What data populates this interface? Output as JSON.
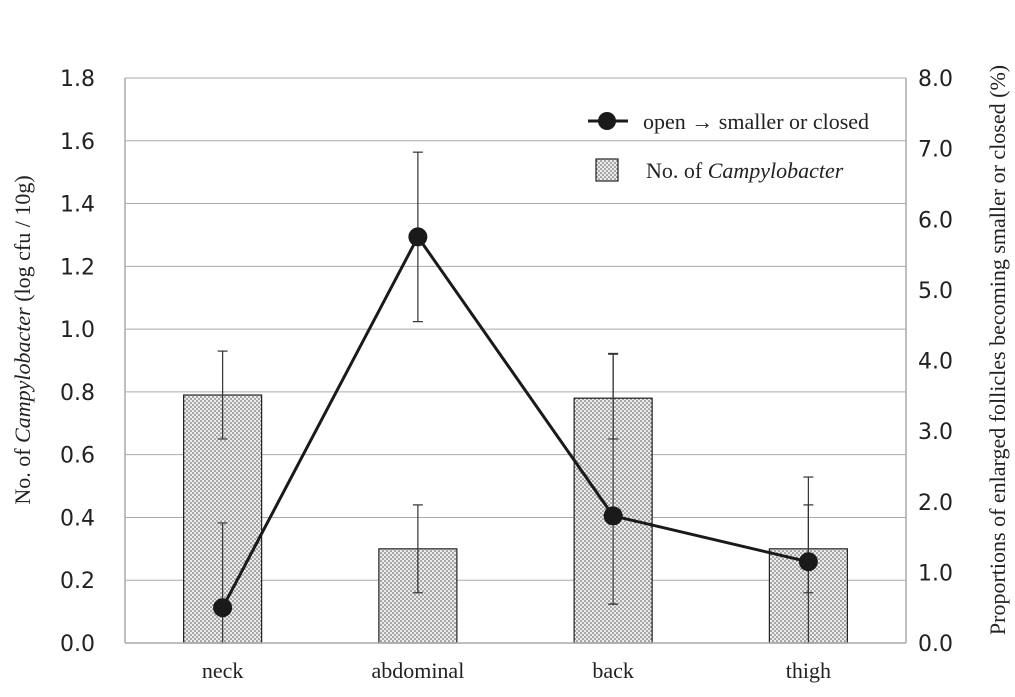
{
  "chart_data": {
    "type": "bar",
    "categories": [
      "neck",
      "abdominal",
      "back",
      "thigh"
    ],
    "series": [
      {
        "name": "No. of Campylobacter",
        "name_prefix": "No. of ",
        "name_italic": "Campylobacter",
        "kind": "bar",
        "axis": "left",
        "values": [
          0.79,
          0.3,
          0.78,
          0.3
        ],
        "error_low": [
          0.65,
          0.16,
          0.65,
          0.16
        ],
        "error_high": [
          0.93,
          0.44,
          0.92,
          0.44
        ]
      },
      {
        "name": "open → smaller or closed",
        "kind": "line",
        "axis": "right",
        "values": [
          0.5,
          5.75,
          1.8,
          1.15
        ],
        "error_low": [
          0.0,
          4.55,
          0.55,
          0.0
        ],
        "error_high": [
          1.7,
          6.95,
          4.1,
          2.35
        ]
      }
    ],
    "left_axis": {
      "title_prefix": "No. of ",
      "title_italic": "Campylobacter",
      "title_suffix": " (log cfu / 10g)",
      "ylim": [
        0,
        1.8
      ],
      "ticks": [
        "0.0",
        "0.2",
        "0.4",
        "0.6",
        "0.8",
        "1.0",
        "1.2",
        "1.4",
        "1.6",
        "1.8"
      ]
    },
    "right_axis": {
      "title": "Proportions of enlarged follicles becoming smaller or closed (%)",
      "ylim": [
        0,
        8
      ],
      "ticks": [
        "0.0",
        "1.0",
        "2.0",
        "3.0",
        "4.0",
        "5.0",
        "6.0",
        "7.0",
        "8.0"
      ]
    },
    "grid": true,
    "legend_position": "top-right",
    "colors": {
      "bar_fill": "#e4e4e4",
      "line": "#1a1a1a",
      "grid": "#aaaaaa"
    }
  }
}
